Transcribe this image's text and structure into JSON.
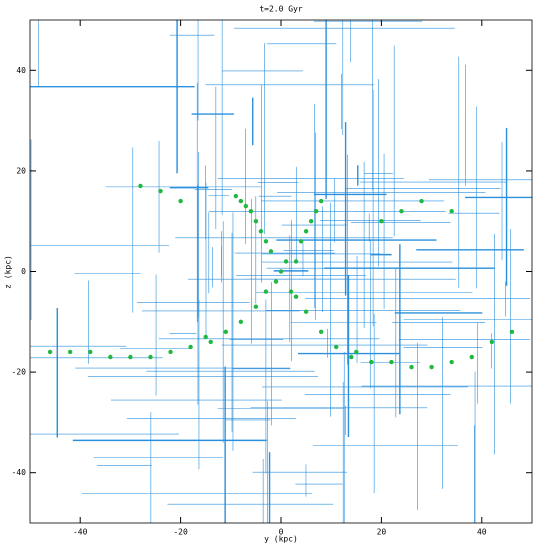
{
  "chart_data": {
    "type": "scatter",
    "title": "t=2.0 Gyr",
    "x_label": "y (kpc)",
    "y_label": "z (kpc)",
    "xlim": [
      -50,
      50
    ],
    "ylim": [
      -50,
      50
    ],
    "xticks": [
      -40,
      -20,
      0,
      20,
      40
    ],
    "yticks": [
      -40,
      -20,
      0,
      20,
      40
    ],
    "color": "#1fb840",
    "x": [
      0,
      1,
      -1,
      -2,
      2,
      -3,
      3,
      -4,
      4,
      -5,
      5,
      -6,
      6,
      -7,
      7,
      -8,
      8,
      -9,
      -3,
      -5,
      -8,
      -11,
      -14,
      -18,
      -22,
      -26,
      -30,
      -34,
      -38,
      -42,
      -46,
      3,
      5,
      8,
      11,
      14,
      18,
      22,
      26,
      30,
      34,
      38,
      42,
      46,
      -20,
      -24,
      -28,
      20,
      24,
      28,
      34,
      -15,
      15
    ],
    "y": [
      0,
      2,
      -2,
      4,
      -4,
      6,
      2,
      8,
      6,
      10,
      8,
      12,
      10,
      13,
      12,
      14,
      14,
      15,
      -4,
      -7,
      -10,
      -12,
      -14,
      -15,
      -16,
      -17,
      -17,
      -17,
      -16,
      -16,
      -16,
      -5,
      -8,
      -12,
      -15,
      -17,
      -18,
      -18,
      -19,
      -19,
      -18,
      -17,
      -14,
      -12,
      14,
      16,
      17,
      10,
      12,
      14,
      12,
      -13,
      -16
    ]
  }
}
